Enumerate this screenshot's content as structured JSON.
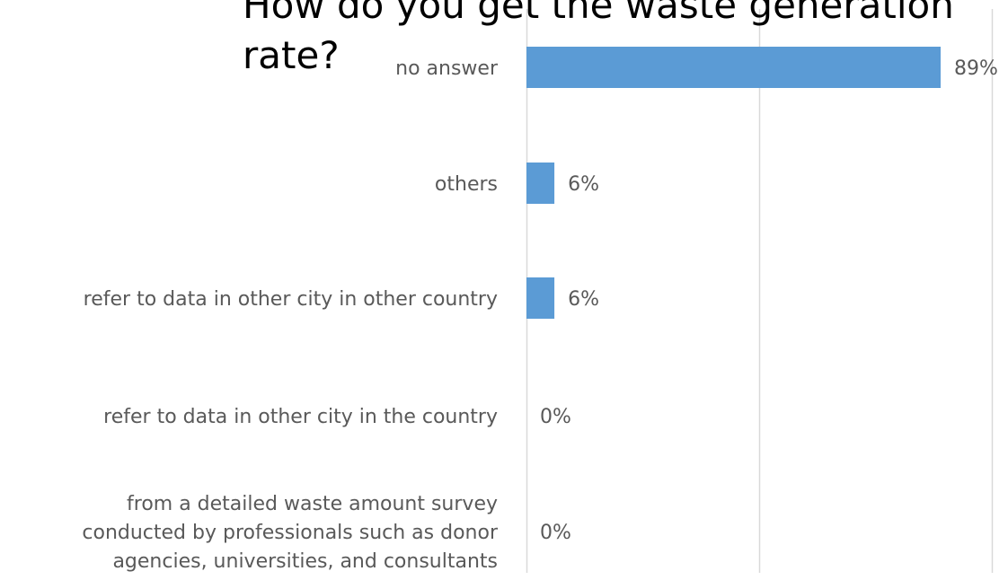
{
  "chart_data": {
    "type": "bar",
    "orientation": "horizontal",
    "title": "How do you get the waste generation rate?",
    "categories": [
      "no answer",
      "others",
      "refer to data in other city in other country",
      "refer to data in other city in the country",
      "from a detailed waste amount survey conducted by professionals such as donor agencies, universities, and consultants"
    ],
    "category_lines": [
      [
        "no answer"
      ],
      [
        "others"
      ],
      [
        "refer to data in other city in other country"
      ],
      [
        "refer to data in other city in the country"
      ],
      [
        "from a detailed waste amount survey",
        "conducted by professionals such as donor",
        "agencies, universities, and consultants"
      ]
    ],
    "values": [
      89,
      6,
      6,
      0,
      0
    ],
    "value_labels": [
      "89%",
      "6%",
      "6%",
      "0%",
      "0%"
    ],
    "xlim": [
      0,
      100
    ],
    "gridlines": [
      0,
      50,
      100
    ],
    "grid": true,
    "bar_color": "#5b9bd5",
    "grid_color": "#d9d9d9",
    "label_color": "#595959"
  }
}
